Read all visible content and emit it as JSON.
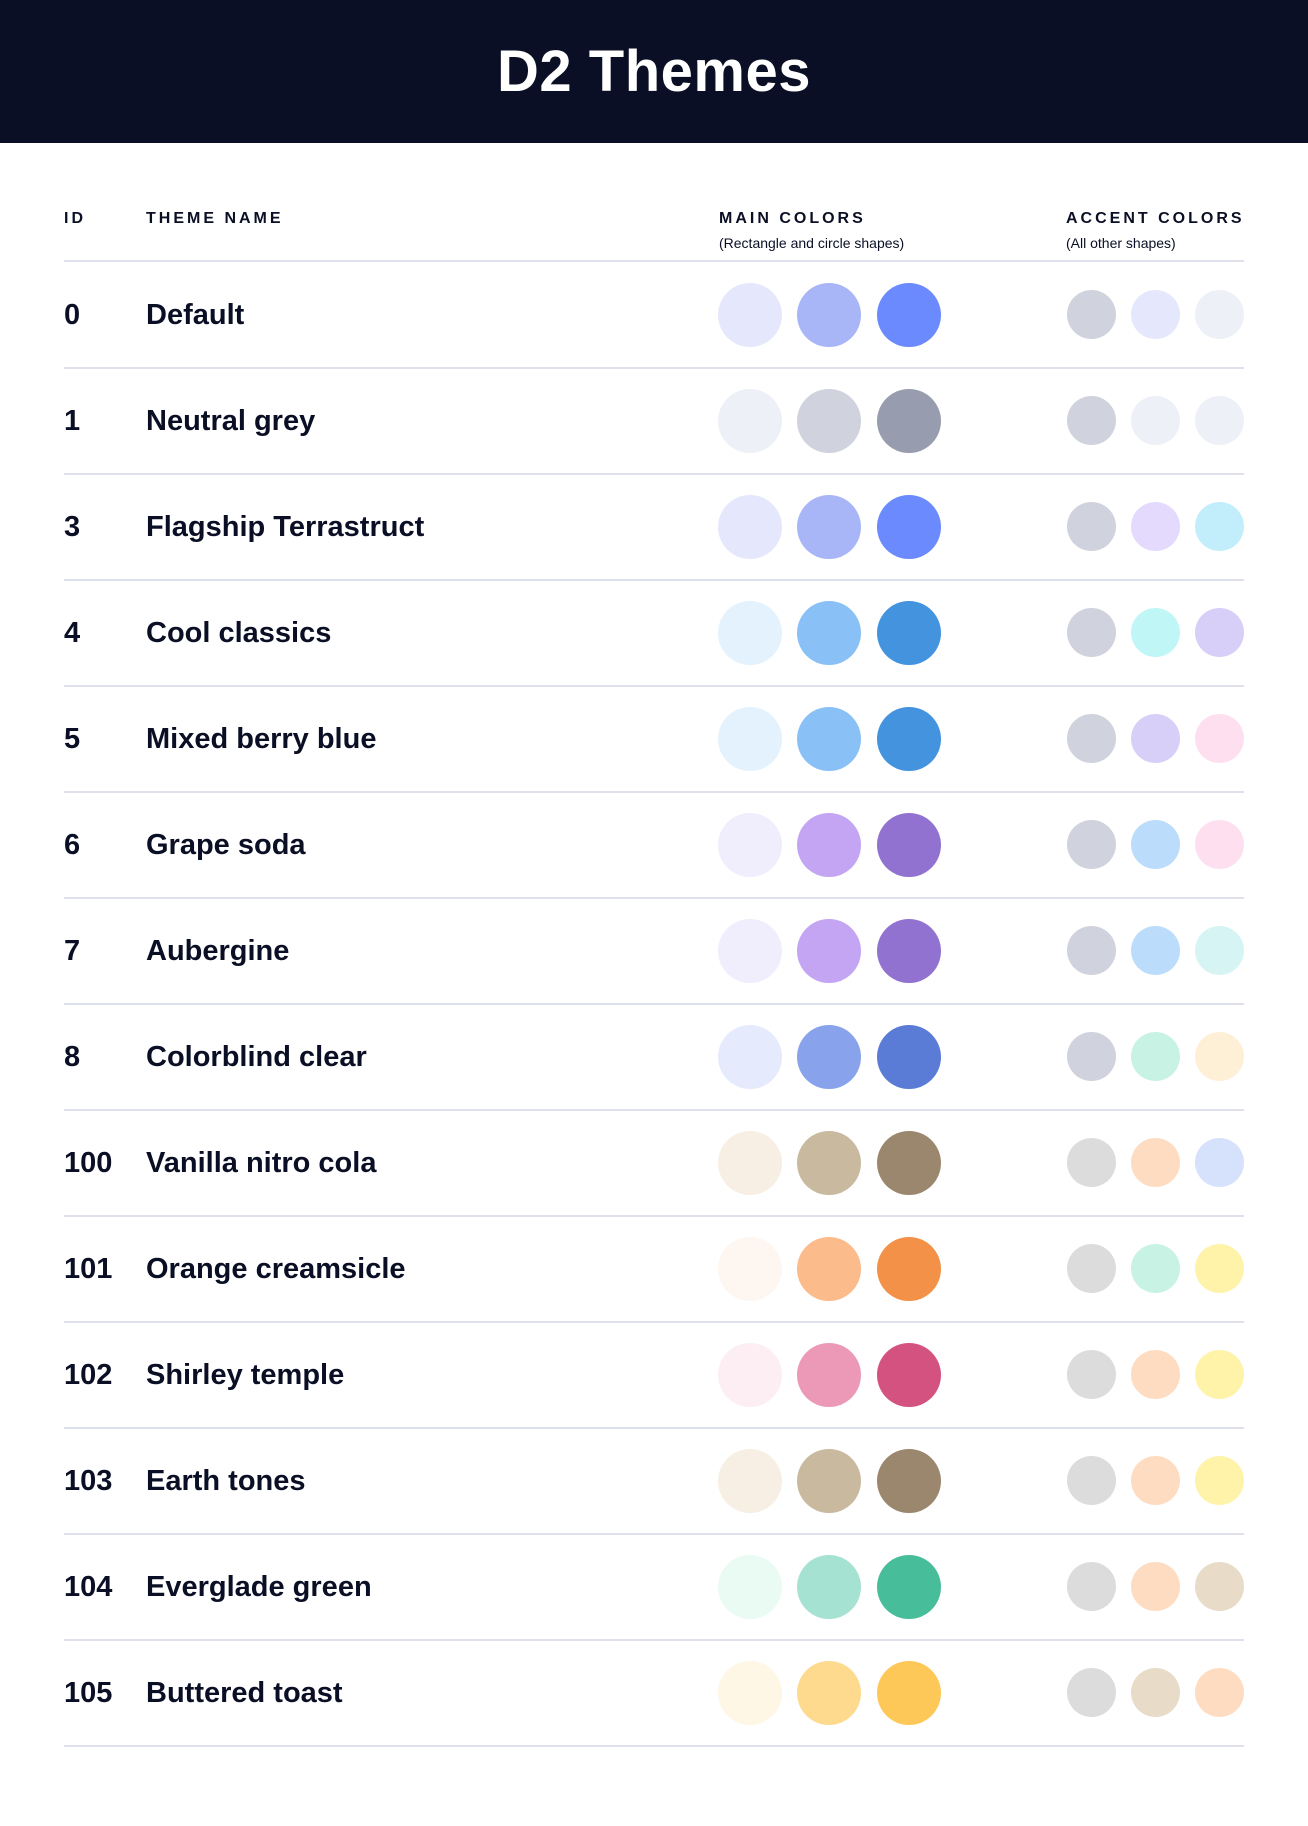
{
  "title": "D2 Themes",
  "columns": {
    "id": "ID",
    "theme_name": "THEME NAME",
    "main_colors": "MAIN COLORS",
    "main_colors_sub": "(Rectangle and circle shapes)",
    "accent_colors": "ACCENT COLORS",
    "accent_colors_sub": "(All other shapes)"
  },
  "themes": [
    {
      "id": "0",
      "name": "Default",
      "main": [
        "#E5E8FD",
        "#A8B6F7",
        "#6B8AFD"
      ],
      "accent": [
        "#D0D2DD",
        "#E5E8FD",
        "#EEF0F8"
      ]
    },
    {
      "id": "1",
      "name": "Neutral grey",
      "main": [
        "#EEF0F7",
        "#D0D2DD",
        "#979DAE"
      ],
      "accent": [
        "#D0D2DD",
        "#EEF0F7",
        "#EEF0F7"
      ]
    },
    {
      "id": "3",
      "name": "Flagship Terrastruct",
      "main": [
        "#E5E8FD",
        "#A8B6F7",
        "#6B8AFD"
      ],
      "accent": [
        "#D0D2DD",
        "#E3DAFD",
        "#C2EEFC"
      ]
    },
    {
      "id": "4",
      "name": "Cool classics",
      "main": [
        "#E3F2FD",
        "#89C0F5",
        "#4393DF"
      ],
      "accent": [
        "#D0D2DD",
        "#C0F7F6",
        "#D8CFF8"
      ]
    },
    {
      "id": "5",
      "name": "Mixed berry blue",
      "main": [
        "#E3F2FD",
        "#89C0F5",
        "#4393DF"
      ],
      "accent": [
        "#D0D2DD",
        "#D8CFF8",
        "#FDDFF0"
      ]
    },
    {
      "id": "6",
      "name": "Grape soda",
      "main": [
        "#F0EDFD",
        "#C3A5F3",
        "#9172D1"
      ],
      "accent": [
        "#D0D2DD",
        "#BCDCFB",
        "#FDDFF0"
      ]
    },
    {
      "id": "7",
      "name": "Aubergine",
      "main": [
        "#F0EDFD",
        "#C3A5F3",
        "#9172D1"
      ],
      "accent": [
        "#D0D2DD",
        "#BCDCFB",
        "#D6F4F3"
      ]
    },
    {
      "id": "8",
      "name": "Colorblind clear",
      "main": [
        "#E5EBFD",
        "#88A3EB",
        "#5A7CD6"
      ],
      "accent": [
        "#D0D2DD",
        "#C8F2E4",
        "#FEF0D6"
      ]
    },
    {
      "id": "100",
      "name": "Vanilla nitro cola",
      "main": [
        "#F8EFE4",
        "#C9B99F",
        "#9B876D"
      ],
      "accent": [
        "#DCDCDC",
        "#FEDCC2",
        "#D6E1FB"
      ]
    },
    {
      "id": "101",
      "name": "Orange creamsicle",
      "main": [
        "#FEF6F0",
        "#FBBB8A",
        "#F29147"
      ],
      "accent": [
        "#DCDCDC",
        "#C8F2E4",
        "#FEF3A8"
      ]
    },
    {
      "id": "102",
      "name": "Shirley temple",
      "main": [
        "#FCEEF3",
        "#EB99B6",
        "#D4527F"
      ],
      "accent": [
        "#DCDCDC",
        "#FEDCC2",
        "#FEF3A8"
      ]
    },
    {
      "id": "103",
      "name": "Earth tones",
      "main": [
        "#F8EFE4",
        "#C9B99F",
        "#9B876D"
      ],
      "accent": [
        "#DCDCDC",
        "#FEDCC2",
        "#FEF3A8"
      ]
    },
    {
      "id": "104",
      "name": "Everglade green",
      "main": [
        "#E9FBF3",
        "#A5E2D1",
        "#48BD99"
      ],
      "accent": [
        "#DCDCDC",
        "#FEDCC2",
        "#E8DCC8"
      ]
    },
    {
      "id": "105",
      "name": "Buttered toast",
      "main": [
        "#FEF7E6",
        "#FEDA8E",
        "#FDC857"
      ],
      "accent": [
        "#DCDCDC",
        "#E8DCC8",
        "#FEDCC2"
      ]
    }
  ]
}
